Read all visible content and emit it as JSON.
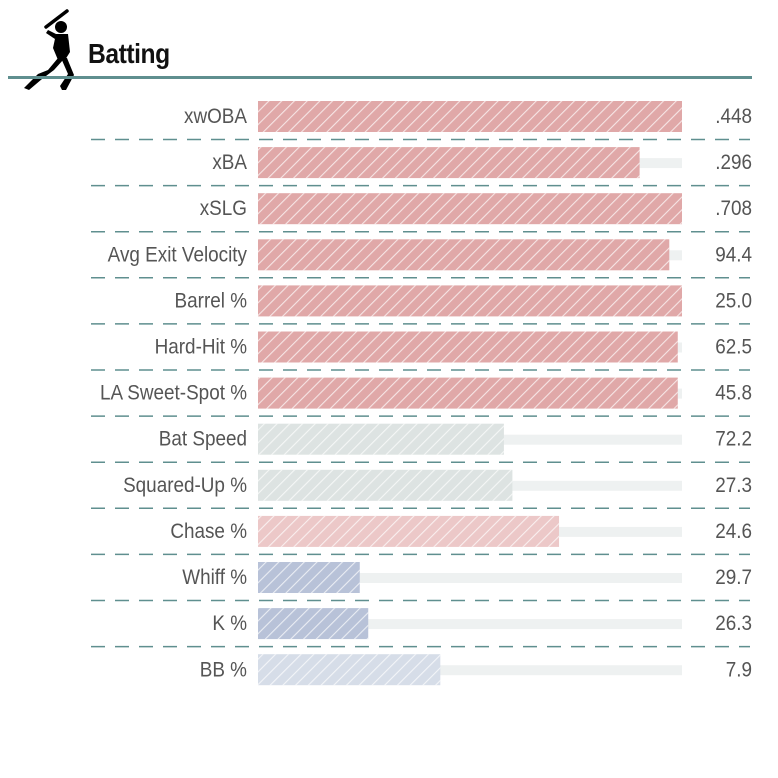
{
  "header": {
    "title": "Batting",
    "icon": "batter-silhouette-icon"
  },
  "colors": {
    "accent_rule": "#5f8f8f",
    "track": "#eef1f1",
    "text": "#555555"
  },
  "chart_data": {
    "type": "bar",
    "orientation": "horizontal",
    "title": "Batting",
    "categories": [
      "xwOBA",
      "xBA",
      "xSLG",
      "Avg Exit Velocity",
      "Barrel %",
      "Hard-Hit %",
      "LA Sweet-Spot %",
      "Bat Speed",
      "Squared-Up %",
      "Chase %",
      "Whiff %",
      "K %",
      "BB %"
    ],
    "values": [
      ".448",
      ".296",
      ".708",
      "94.4",
      "25.0",
      "62.5",
      "45.8",
      "72.2",
      "27.3",
      "24.6",
      "29.7",
      "26.3",
      "7.9"
    ],
    "percentile_fill": [
      100,
      90,
      100,
      97,
      100,
      99,
      99,
      58,
      60,
      71,
      24,
      26,
      43
    ],
    "bar_colors": [
      "#e0a8a8",
      "#e0a8a8",
      "#e0a8a8",
      "#e0a8a8",
      "#e0a8a8",
      "#e0a8a8",
      "#e0a8a8",
      "#dde3e2",
      "#dde3e2",
      "#ecc8c8",
      "#b8c2d8",
      "#b8c2d8",
      "#d6dde8"
    ],
    "xlim": [
      0,
      100
    ],
    "grid": false,
    "legend": "none"
  }
}
